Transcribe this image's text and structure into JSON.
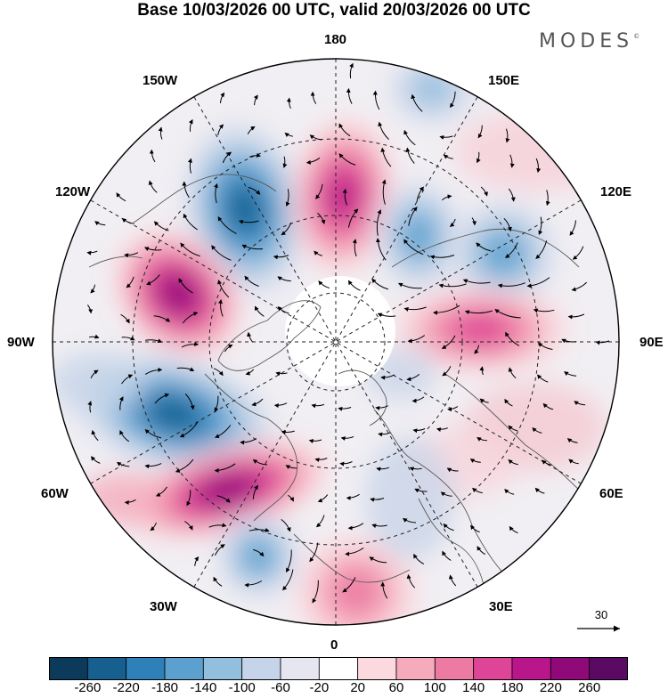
{
  "title": "Base 10/03/2026 00 UTC, valid 20/03/2026 00 UTC",
  "brand": "MODES",
  "brand_mark": "©",
  "longitude_labels": {
    "top": "180",
    "top_left": "150W",
    "top_right": "150E",
    "upper_left": "120W",
    "upper_right": "120E",
    "left": "90W",
    "right": "90E",
    "lower_left": "60W",
    "lower_right": "60E",
    "bottom_left": "30W",
    "bottom_right": "30E",
    "bottom": "0"
  },
  "reference_vector": {
    "value": "30",
    "icon": "arrow-right-icon"
  },
  "colorbar": {
    "colors": [
      "#0b3a5a",
      "#165f8e",
      "#2e80b8",
      "#5ba0cf",
      "#93bfdf",
      "#c5d4e8",
      "#e6e6f1",
      "#ffffff",
      "#fbd9df",
      "#f5abbb",
      "#ec7aa3",
      "#de4596",
      "#b8168a",
      "#8f0a78",
      "#5b0a64"
    ],
    "labels": [
      "-260",
      "-220",
      "-180",
      "-140",
      "-100",
      "-60",
      "-20",
      "20",
      "60",
      "100",
      "140",
      "180",
      "220",
      "260"
    ]
  },
  "chart_data": {
    "type": "polar-stereographic-anomaly-map",
    "title": "Base 10/03/2026 00 UTC, valid 20/03/2026 00 UTC",
    "field_units": "geopotential anomaly (shaded) with wind vectors",
    "reference_vector": 30,
    "color_levels": [
      -260,
      -220,
      -180,
      -140,
      -100,
      -60,
      -20,
      20,
      60,
      100,
      140,
      180,
      220,
      260
    ],
    "anomaly_centers": [
      {
        "sign": "negative",
        "near": "150W-120W",
        "approx_value": -220
      },
      {
        "sign": "positive",
        "near": "170E",
        "approx_value": 180
      },
      {
        "sign": "negative",
        "near": "135E",
        "approx_value": -140
      },
      {
        "sign": "negative",
        "near": "120E",
        "approx_value": -140
      },
      {
        "sign": "positive",
        "near": "110W",
        "approx_value": 240
      },
      {
        "sign": "positive",
        "near": "90E",
        "approx_value": 160
      },
      {
        "sign": "negative",
        "near": "80W",
        "approx_value": -220
      },
      {
        "sign": "positive",
        "near": "55W",
        "approx_value": 220
      },
      {
        "sign": "negative",
        "near": "35W",
        "approx_value": -140
      },
      {
        "sign": "positive",
        "near": "0",
        "approx_value": 100
      },
      {
        "sign": "negative",
        "near": "170W",
        "approx_value": -100
      }
    ]
  }
}
